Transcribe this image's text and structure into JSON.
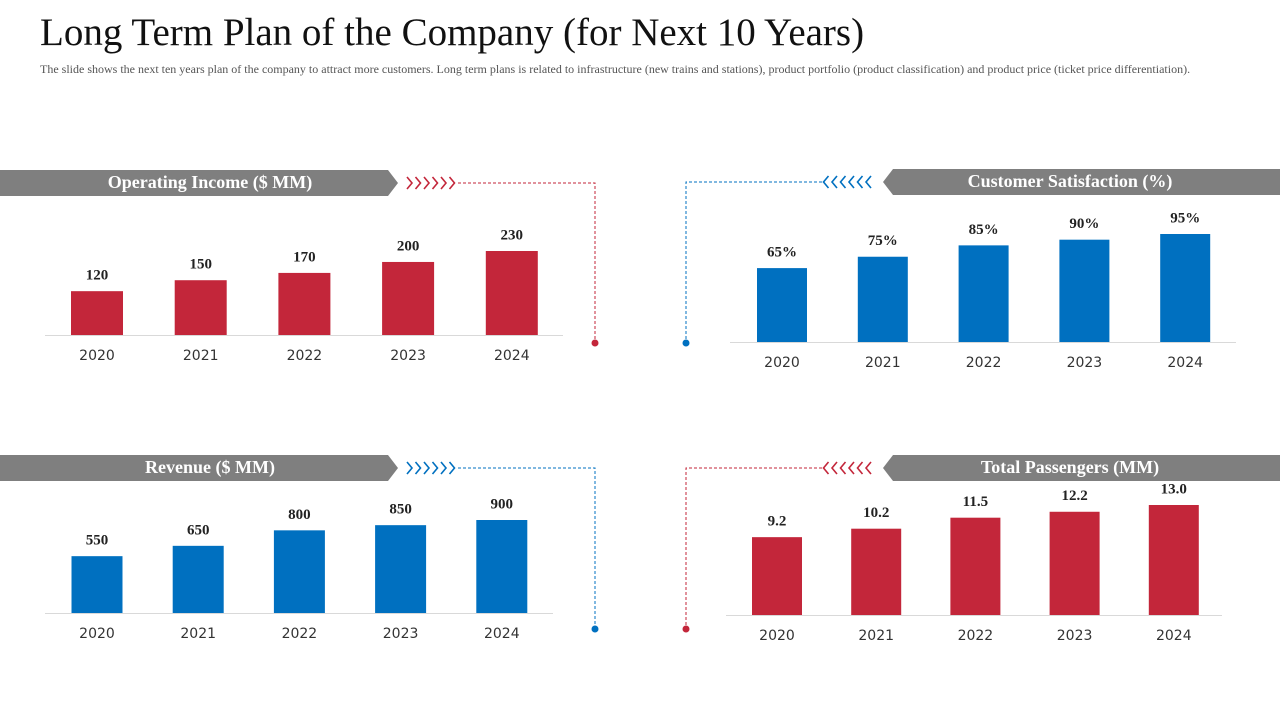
{
  "title": "Long Term Plan of the Company (for Next 10 Years)",
  "description": "The slide shows the next ten years plan of the company to attract more customers. Long term plans is related to infrastructure (new trains and stations), product portfolio (product classification) and product price (ticket price differentiation).",
  "chart_data": [
    {
      "type": "bar",
      "title": "Operating Income ($ MM)",
      "categories": [
        "2020",
        "2021",
        "2022",
        "2023",
        "2024"
      ],
      "values": [
        120,
        150,
        170,
        200,
        230
      ],
      "color": "#c3263a"
    },
    {
      "type": "bar",
      "title": "Customer Satisfaction (%)",
      "categories": [
        "2020",
        "2021",
        "2022",
        "2023",
        "2024"
      ],
      "values": [
        65,
        75,
        85,
        90,
        95
      ],
      "value_labels": [
        "65%",
        "75%",
        "85%",
        "90%",
        "95%"
      ],
      "color": "#0070c0"
    },
    {
      "type": "bar",
      "title": "Revenue ($ MM)",
      "categories": [
        "2020",
        "2021",
        "2022",
        "2023",
        "2024"
      ],
      "values": [
        550,
        650,
        800,
        850,
        900
      ],
      "color": "#0070c0"
    },
    {
      "type": "bar",
      "title": "Total Passengers (MM)",
      "categories": [
        "2020",
        "2021",
        "2022",
        "2023",
        "2024"
      ],
      "values": [
        9.2,
        10.2,
        11.5,
        12.2,
        13.0
      ],
      "value_labels": [
        "9.2",
        "10.2",
        "11.5",
        "12.2",
        "13.0"
      ],
      "color": "#c3263a"
    }
  ]
}
